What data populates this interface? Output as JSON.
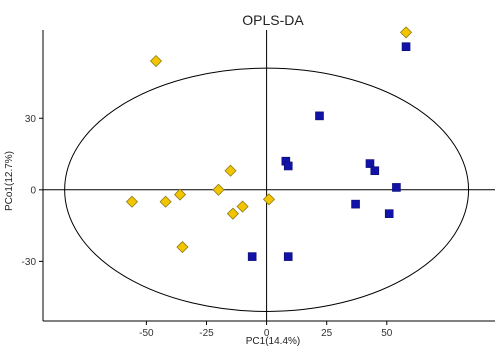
{
  "chart_data": {
    "type": "scatter",
    "title": "OPLS-DA",
    "xlabel": "PC1(14.4%)",
    "ylabel": "PCo1(12.7%)",
    "xlim": [
      -93,
      95
    ],
    "ylim": [
      -55,
      67
    ],
    "x_ticks": [
      -50,
      -25,
      0,
      25,
      50
    ],
    "x_tick_labels": [
      "-50",
      "-25",
      "0",
      "25",
      "50"
    ],
    "y_ticks": [
      -30,
      0,
      30
    ],
    "y_tick_labels": [
      "-30",
      "0",
      "30"
    ],
    "grid": false,
    "reference_lines": {
      "x": 0,
      "y": 0
    },
    "ellipse": {
      "center": [
        0,
        0
      ],
      "semi_x": 84,
      "semi_y": 51
    },
    "series": [
      {
        "marker": "diamond",
        "color": "#F2C500",
        "stroke": "#8C7A1A",
        "points": [
          [
            -46,
            54
          ],
          [
            -56,
            -5
          ],
          [
            -42,
            -5
          ],
          [
            -36,
            -2
          ],
          [
            -35,
            -24
          ],
          [
            -20,
            0
          ],
          [
            -15,
            8
          ],
          [
            -14,
            -10
          ],
          [
            -10,
            -7
          ],
          [
            1,
            -4
          ],
          [
            58,
            66
          ]
        ]
      },
      {
        "marker": "square",
        "color": "#1212A8",
        "stroke": "#0A0A70",
        "points": [
          [
            58,
            60
          ],
          [
            22,
            31
          ],
          [
            8,
            12
          ],
          [
            9,
            10
          ],
          [
            43,
            11
          ],
          [
            45,
            8
          ],
          [
            54,
            1
          ],
          [
            37,
            -6
          ],
          [
            51,
            -10
          ],
          [
            -6,
            -28
          ],
          [
            9,
            -28
          ]
        ]
      }
    ]
  }
}
